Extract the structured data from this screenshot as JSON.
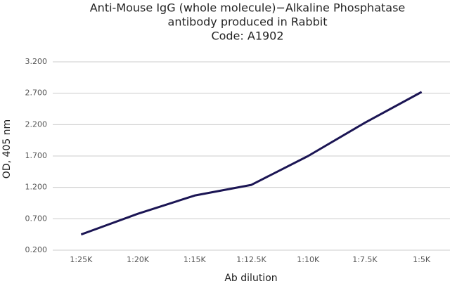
{
  "chart_data": {
    "type": "line",
    "title": [
      "Anti-Mouse IgG (whole molecule)−Alkaline Phosphatase",
      "antibody produced in Rabbit",
      "Code: A1902"
    ],
    "x_label": "Ab dilution",
    "y_label": "OD, 405 nm",
    "categories": [
      "1:25K",
      "1:20K",
      "1:15K",
      "1:12.5K",
      "1:10K",
      "1:7.5K",
      "1:5K"
    ],
    "values": [
      0.45,
      0.78,
      1.07,
      1.24,
      1.7,
      2.23,
      2.72
    ],
    "color": "#1b1554",
    "ylim": [
      0.2,
      3.2
    ],
    "yticks": [
      {
        "value": 0.2,
        "label": "0.200"
      },
      {
        "value": 0.7,
        "label": "0.700"
      },
      {
        "value": 1.2,
        "label": "1.200"
      },
      {
        "value": 1.7,
        "label": "1.700"
      },
      {
        "value": 2.2,
        "label": "2.200"
      },
      {
        "value": 2.7,
        "label": "2.700"
      },
      {
        "value": 3.2,
        "label": "3.200"
      }
    ],
    "grid": true
  }
}
